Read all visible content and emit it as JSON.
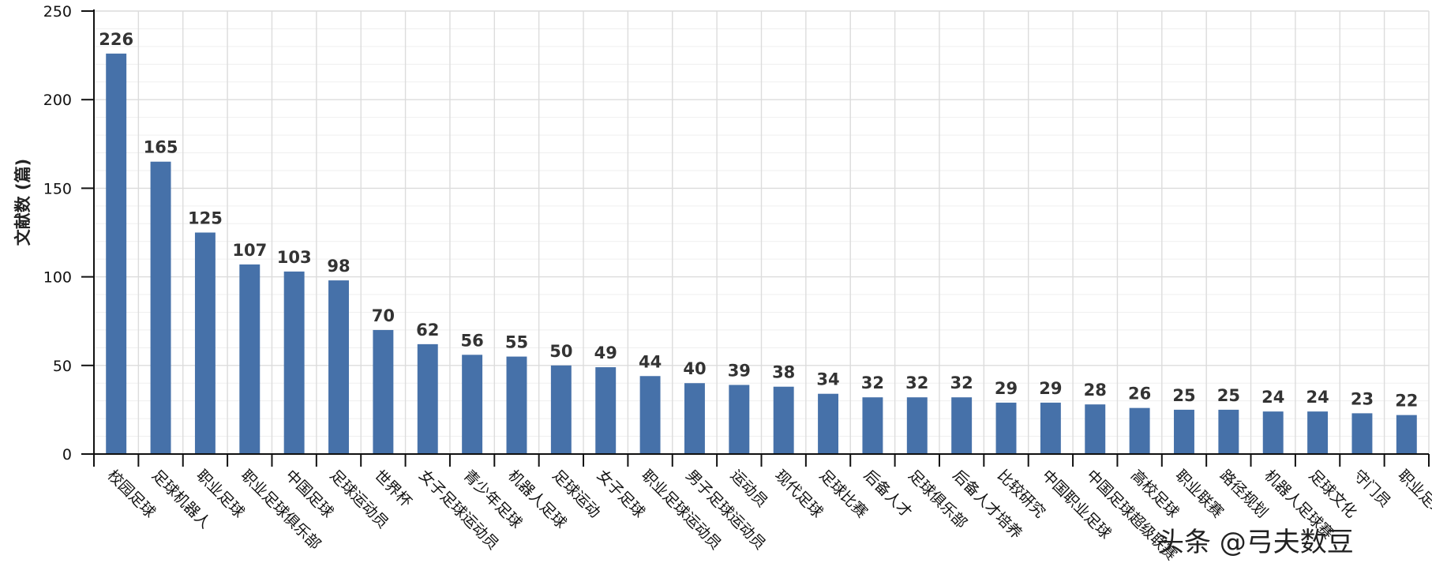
{
  "chart_data": {
    "type": "bar",
    "title": "",
    "xlabel": "",
    "ylabel": "文献数 (篇)",
    "ylim": [
      0,
      250
    ],
    "yticks": [
      0,
      50,
      100,
      150,
      200,
      250
    ],
    "grid": true,
    "categories": [
      "校园足球",
      "足球机器人",
      "职业足球",
      "职业足球俱乐部",
      "中国足球",
      "足球运动员",
      "世界杯",
      "女子足球运动员",
      "青少年足球",
      "机器人足球",
      "足球运动",
      "女子足球",
      "职业足球运动员",
      "男子足球运动员",
      "运动员",
      "现代足球",
      "足球比赛",
      "后备人才",
      "足球俱乐部",
      "后备人才培养",
      "比较研究",
      "中国职业足球",
      "中国足球超级联赛",
      "高校足球",
      "职业联赛",
      "路径规划",
      "机器人足球赛",
      "足球文化",
      "守门员",
      "职业足球联赛"
    ],
    "values": [
      226,
      165,
      125,
      107,
      103,
      98,
      70,
      62,
      56,
      55,
      50,
      49,
      44,
      40,
      39,
      38,
      34,
      32,
      32,
      32,
      29,
      29,
      28,
      26,
      25,
      25,
      24,
      24,
      23,
      22
    ],
    "bar_color": "#4671a9"
  },
  "watermark": "头条 @弓夫数豆"
}
